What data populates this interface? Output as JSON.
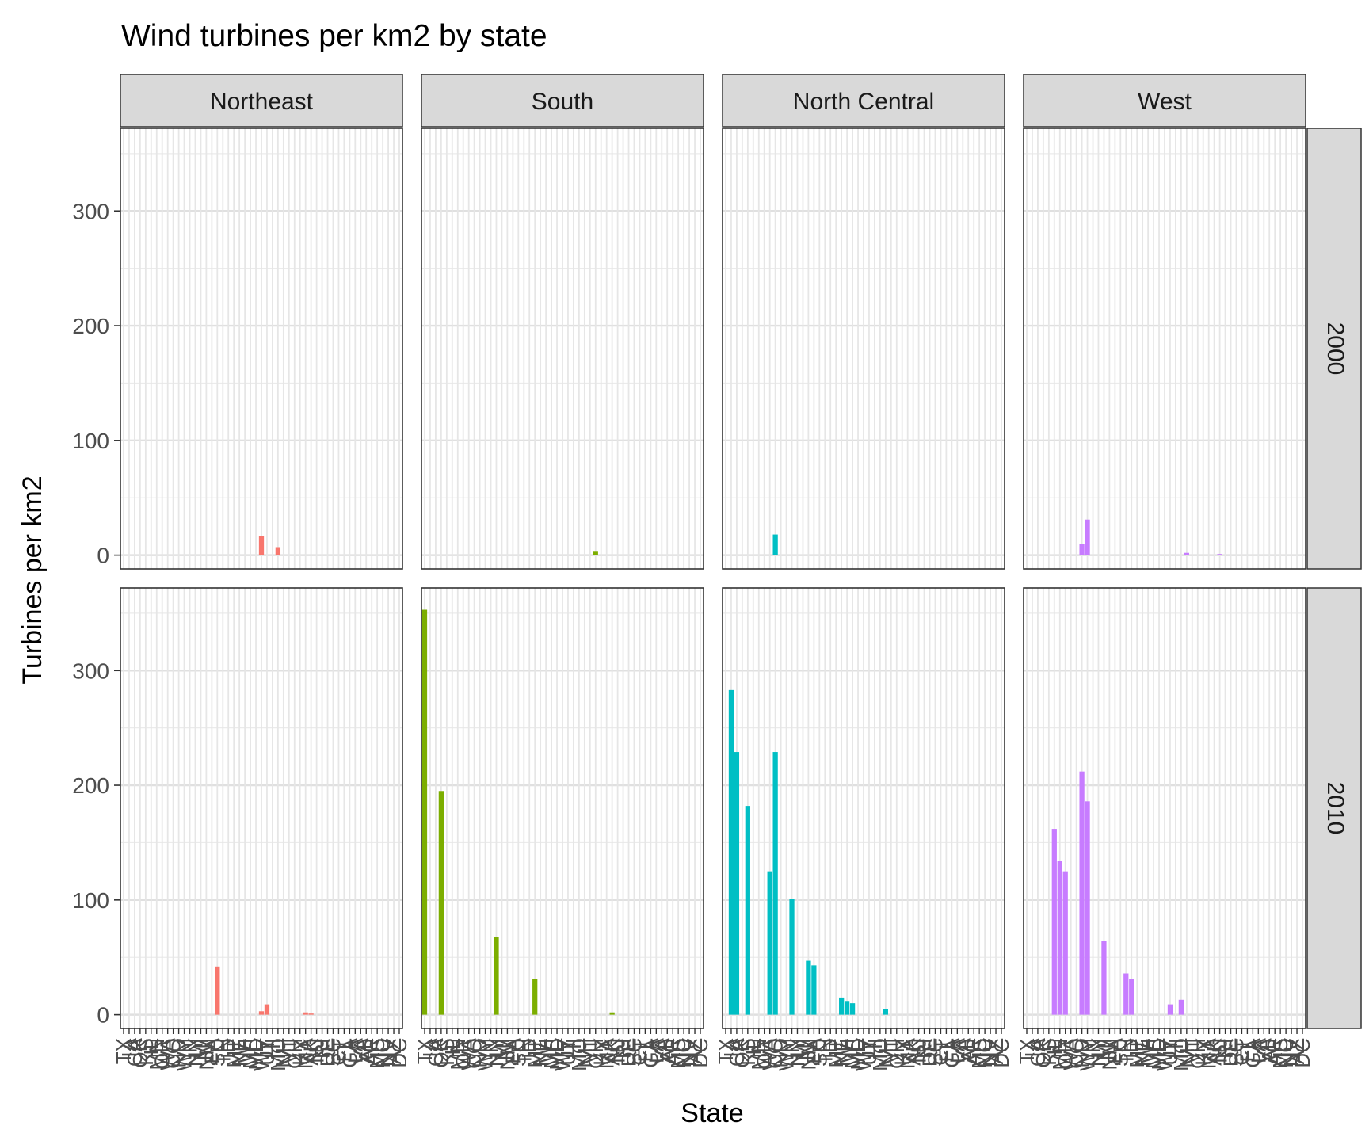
{
  "chart_data": {
    "type": "bar",
    "title": "Wind turbines per km2 by state",
    "xlabel": "State",
    "ylabel": "Turbines per km2",
    "ylim": [
      -12,
      372
    ],
    "yticks": [
      0,
      100,
      200,
      300
    ],
    "grid": true,
    "legend": "none",
    "facet_cols": [
      "Northeast",
      "South",
      "North Central",
      "West"
    ],
    "facet_rows": [
      "2000",
      "2010"
    ],
    "region_colors": {
      "Northeast": "#F8766D",
      "South": "#7CAE00",
      "North Central": "#00BFC4",
      "West": "#C77CFF"
    },
    "x_tick_labels": [
      "TX",
      "IA",
      "CA",
      "OK",
      "KS",
      "IL",
      "MN",
      "OR",
      "WA",
      "CO",
      "ND",
      "WY",
      "IN",
      "NY",
      "MI",
      "NM",
      "PA",
      "SD",
      "TN",
      "ID",
      "MT",
      "NE",
      "WI",
      "ME",
      "MD",
      "WV",
      "UT",
      "HI",
      "MO",
      "NH",
      "VT",
      "OH",
      "KY",
      "MA",
      "AK",
      "NJ",
      "RI",
      "DE",
      "SC",
      "CT",
      "FL",
      "GA",
      "LA",
      "VA",
      "AL",
      "AR",
      "MS",
      "NC",
      "NV",
      "AZ",
      "DC"
    ],
    "panels": [
      {
        "region": "Northeast",
        "year": "2000",
        "bars": [
          [
            25,
            17
          ],
          [
            28,
            7
          ]
        ]
      },
      {
        "region": "South",
        "year": "2000",
        "bars": [
          [
            31,
            3
          ]
        ]
      },
      {
        "region": "North Central",
        "year": "2000",
        "bars": [
          [
            9,
            18
          ]
        ]
      },
      {
        "region": "West",
        "year": "2000",
        "bars": [
          [
            10,
            10
          ],
          [
            11,
            31
          ],
          [
            29,
            2
          ],
          [
            35,
            1
          ]
        ]
      },
      {
        "region": "Northeast",
        "year": "2010",
        "bars": [
          [
            17,
            42
          ],
          [
            25,
            3
          ],
          [
            26,
            9
          ],
          [
            33,
            2
          ],
          [
            34,
            1
          ]
        ]
      },
      {
        "region": "South",
        "year": "2010",
        "bars": [
          [
            0,
            353
          ],
          [
            3,
            195
          ],
          [
            13,
            68
          ],
          [
            20,
            31
          ],
          [
            34,
            2
          ]
        ]
      },
      {
        "region": "North Central",
        "year": "2010",
        "bars": [
          [
            1,
            283
          ],
          [
            2,
            229
          ],
          [
            4,
            182
          ],
          [
            8,
            125
          ],
          [
            9,
            229
          ],
          [
            12,
            101
          ],
          [
            15,
            47
          ],
          [
            16,
            43
          ],
          [
            21,
            15
          ],
          [
            22,
            12
          ],
          [
            23,
            10
          ],
          [
            29,
            5
          ]
        ]
      },
      {
        "region": "West",
        "year": "2010",
        "bars": [
          [
            5,
            162
          ],
          [
            6,
            134
          ],
          [
            7,
            125
          ],
          [
            10,
            212
          ],
          [
            11,
            186
          ],
          [
            14,
            64
          ],
          [
            18,
            36
          ],
          [
            19,
            31
          ],
          [
            26,
            9
          ],
          [
            28,
            13
          ]
        ]
      }
    ]
  }
}
